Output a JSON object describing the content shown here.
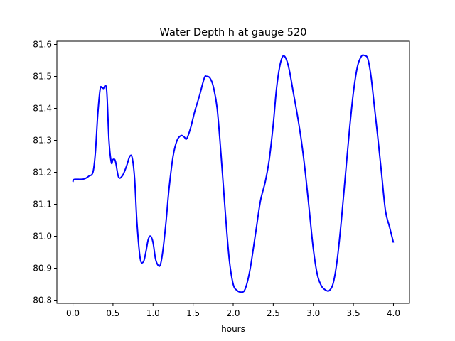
{
  "chart_data": {
    "type": "line",
    "title": "Water Depth h at gauge 520",
    "xlabel": "hours",
    "ylabel": "",
    "xlim": [
      -0.2,
      4.2
    ],
    "ylim": [
      80.79,
      81.61
    ],
    "grid": false,
    "xticks": [
      0.0,
      0.5,
      1.0,
      1.5,
      2.0,
      2.5,
      3.0,
      3.5,
      4.0
    ],
    "xtick_labels": [
      "0.0",
      "0.5",
      "1.0",
      "1.5",
      "2.0",
      "2.5",
      "3.0",
      "3.5",
      "4.0"
    ],
    "yticks": [
      80.8,
      80.9,
      81.0,
      81.1,
      81.2,
      81.3,
      81.4,
      81.5,
      81.6
    ],
    "ytick_labels": [
      "80.8",
      "80.9",
      "81.0",
      "81.1",
      "81.2",
      "81.3",
      "81.4",
      "81.5",
      "81.6"
    ],
    "series": [
      {
        "color": "#0000ff",
        "x": [
          0.0,
          0.01,
          0.05,
          0.1,
          0.15,
          0.2,
          0.25,
          0.28,
          0.31,
          0.34,
          0.36,
          0.38,
          0.42,
          0.45,
          0.48,
          0.5,
          0.53,
          0.57,
          0.62,
          0.67,
          0.71,
          0.74,
          0.77,
          0.8,
          0.84,
          0.88,
          0.91,
          0.94,
          0.97,
          1.0,
          1.03,
          1.06,
          1.09,
          1.12,
          1.16,
          1.2,
          1.25,
          1.3,
          1.35,
          1.39,
          1.42,
          1.47,
          1.52,
          1.58,
          1.64,
          1.67,
          1.71,
          1.75,
          1.8,
          1.85,
          1.9,
          1.95,
          2.0,
          2.05,
          2.1,
          2.14,
          2.18,
          2.22,
          2.28,
          2.34,
          2.4,
          2.45,
          2.5,
          2.54,
          2.58,
          2.62,
          2.66,
          2.7,
          2.75,
          2.8,
          2.85,
          2.9,
          2.95,
          3.0,
          3.05,
          3.1,
          3.15,
          3.2,
          3.25,
          3.3,
          3.35,
          3.4,
          3.45,
          3.5,
          3.55,
          3.6,
          3.64,
          3.68,
          3.72,
          3.76,
          3.8,
          3.85,
          3.9,
          3.95,
          4.0
        ],
        "y": [
          81.17,
          81.177,
          81.178,
          81.178,
          81.18,
          81.188,
          81.2,
          81.26,
          81.38,
          81.46,
          81.465,
          81.462,
          81.46,
          81.3,
          81.23,
          81.24,
          81.235,
          81.185,
          81.19,
          81.22,
          81.25,
          81.245,
          81.18,
          81.04,
          80.93,
          80.92,
          80.95,
          80.99,
          81.0,
          80.98,
          80.93,
          80.91,
          80.91,
          80.95,
          81.04,
          81.15,
          81.25,
          81.3,
          81.315,
          81.31,
          81.305,
          81.34,
          81.39,
          81.44,
          81.495,
          81.5,
          81.495,
          81.47,
          81.4,
          81.25,
          81.08,
          80.93,
          80.85,
          80.83,
          80.825,
          80.83,
          80.86,
          80.91,
          81.01,
          81.11,
          81.17,
          81.24,
          81.35,
          81.46,
          81.53,
          81.563,
          81.555,
          81.52,
          81.45,
          81.38,
          81.3,
          81.2,
          81.08,
          80.96,
          80.88,
          80.845,
          80.832,
          80.83,
          80.855,
          80.93,
          81.05,
          81.19,
          81.33,
          81.45,
          81.53,
          81.563,
          81.565,
          81.555,
          81.5,
          81.41,
          81.32,
          81.2,
          81.08,
          81.03,
          80.98
        ]
      }
    ]
  }
}
